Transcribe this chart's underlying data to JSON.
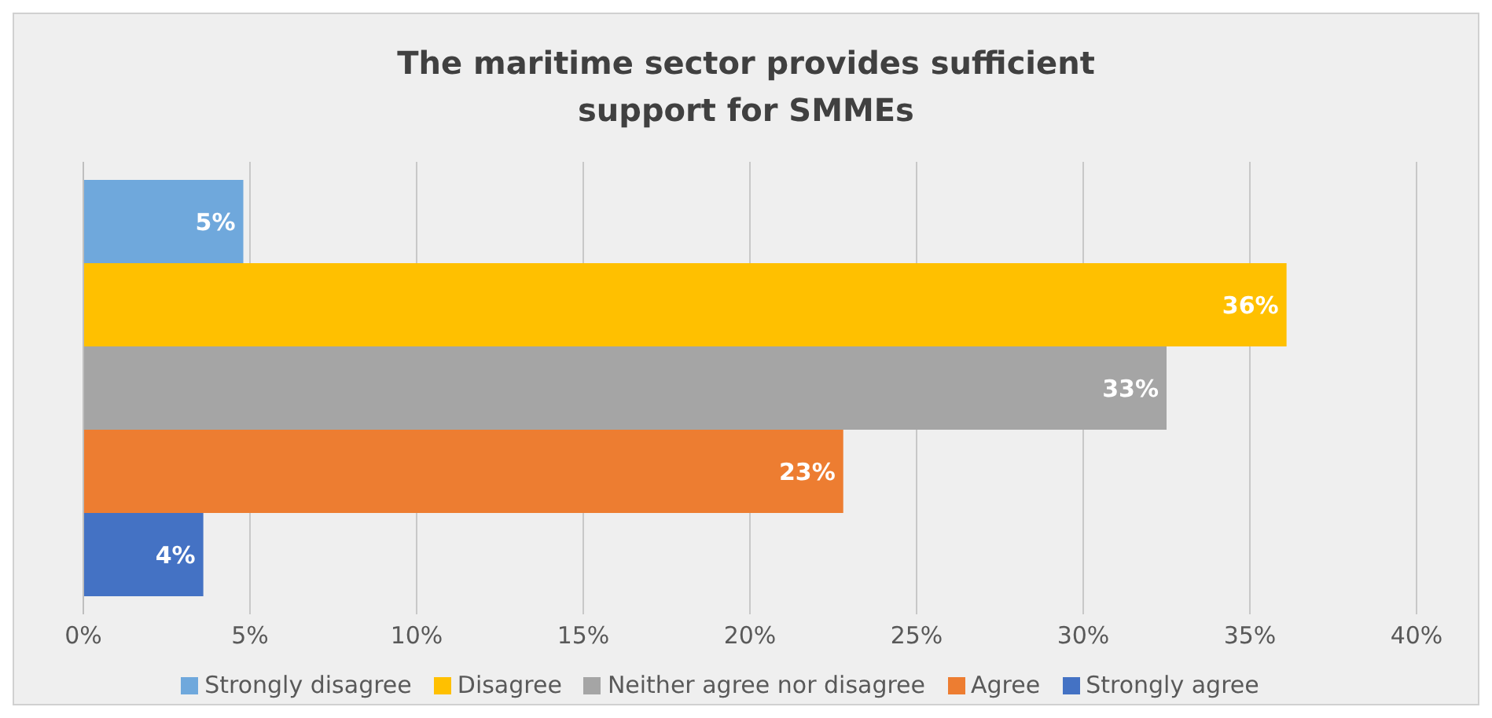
{
  "chart_data": {
    "type": "bar",
    "orientation": "horizontal",
    "title": "The maritime sector provides sufficient support for SMMEs",
    "categories": [
      null
    ],
    "series": [
      {
        "name": "Strongly disagree",
        "color": "#6fa8dc",
        "values": [
          4.8
        ],
        "value_labels": [
          "5%"
        ]
      },
      {
        "name": "Disagree",
        "color": "#ffc000",
        "values": [
          36.1
        ],
        "value_labels": [
          "36%"
        ]
      },
      {
        "name": "Neither agree nor disagree",
        "color": "#a5a5a5",
        "values": [
          32.5
        ],
        "value_labels": [
          "33%"
        ]
      },
      {
        "name": "Agree",
        "color": "#ed7d31",
        "values": [
          22.8
        ],
        "value_labels": [
          "23%"
        ]
      },
      {
        "name": "Strongly agree",
        "color": "#4472c4",
        "values": [
          3.6
        ],
        "value_labels": [
          "4%"
        ]
      }
    ],
    "xlim": [
      0,
      40
    ],
    "xticks": [
      {
        "value": 0,
        "label": "0%"
      },
      {
        "value": 5,
        "label": "5%"
      },
      {
        "value": 10,
        "label": "10%"
      },
      {
        "value": 15,
        "label": "15%"
      },
      {
        "value": 20,
        "label": "20%"
      },
      {
        "value": 25,
        "label": "25%"
      },
      {
        "value": 30,
        "label": "30%"
      },
      {
        "value": 35,
        "label": "35%"
      },
      {
        "value": 40,
        "label": "40%"
      }
    ],
    "grid": "x",
    "legend": "bottom"
  }
}
